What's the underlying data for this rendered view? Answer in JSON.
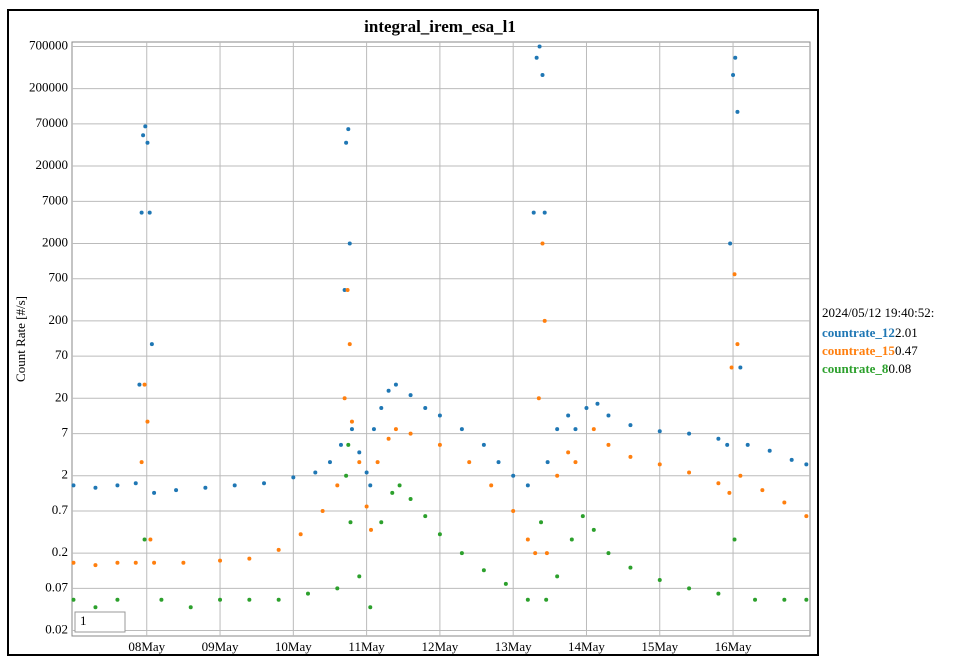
{
  "chart_data": {
    "type": "scatter",
    "title": "integral_irem_esa_l1",
    "y_label": "Count Rate [#/s]",
    "log_y": true,
    "grid": true,
    "zoom_input": "1",
    "xlim": [
      6.98,
      17.05
    ],
    "xticks": [
      {
        "value": 8,
        "label": "08May"
      },
      {
        "value": 9,
        "label": "09May"
      },
      {
        "value": 10,
        "label": "10May"
      },
      {
        "value": 11,
        "label": "11May"
      },
      {
        "value": 12,
        "label": "12May"
      },
      {
        "value": 13,
        "label": "13May"
      },
      {
        "value": 14,
        "label": "14May"
      },
      {
        "value": 15,
        "label": "15May"
      },
      {
        "value": 16,
        "label": "16May"
      }
    ],
    "ylim": [
      0.017,
      800000
    ],
    "yticks": [
      0.02,
      0.07,
      0.2,
      0.7,
      2,
      7,
      20,
      70,
      200,
      700,
      2000,
      7000,
      20000,
      70000,
      200000,
      700000
    ],
    "readout_time": "2024/05/12 19:40:52:",
    "series": [
      {
        "name": "countrate_12",
        "color": "#1f77b4",
        "readout": 2.01,
        "x": [
          7.0,
          7.3,
          7.6,
          7.85,
          7.9,
          7.93,
          7.95,
          7.98,
          8.01,
          8.04,
          8.07,
          8.1,
          8.4,
          8.8,
          9.2,
          9.6,
          10.0,
          10.3,
          10.5,
          10.65,
          10.7,
          10.72,
          10.75,
          10.77,
          10.8,
          10.9,
          11.0,
          11.05,
          11.1,
          11.2,
          11.3,
          11.4,
          11.6,
          11.8,
          12.0,
          12.3,
          12.6,
          12.8,
          13.0,
          13.2,
          13.28,
          13.32,
          13.36,
          13.4,
          13.43,
          13.47,
          13.6,
          13.75,
          13.85,
          14.0,
          14.15,
          14.3,
          14.6,
          15.0,
          15.4,
          15.8,
          15.92,
          15.96,
          16.0,
          16.03,
          16.06,
          16.1,
          16.2,
          16.5,
          16.8,
          17.0
        ],
        "values": [
          1.5,
          1.4,
          1.5,
          1.6,
          30,
          5000,
          50000,
          65000,
          40000,
          5000,
          100,
          1.2,
          1.3,
          1.4,
          1.5,
          1.6,
          1.9,
          2.2,
          3,
          5,
          500,
          40000,
          60000,
          2000,
          8,
          4,
          2.2,
          1.5,
          8,
          15,
          25,
          30,
          22,
          15,
          12,
          8,
          5,
          3,
          2,
          1.5,
          5000,
          500000,
          700000,
          300000,
          5000,
          3,
          8,
          12,
          8,
          15,
          17,
          12,
          9,
          7.5,
          7,
          6,
          5,
          2000,
          300000,
          500000,
          100000,
          50,
          5,
          4.2,
          3.2,
          2.8
        ]
      },
      {
        "name": "countrate_15",
        "color": "#ff7f0e",
        "readout": 0.47,
        "x": [
          7.0,
          7.3,
          7.6,
          7.85,
          7.93,
          7.97,
          8.01,
          8.05,
          8.1,
          8.5,
          9.0,
          9.4,
          9.8,
          10.1,
          10.4,
          10.6,
          10.7,
          10.74,
          10.77,
          10.8,
          10.9,
          11.0,
          11.06,
          11.15,
          11.3,
          11.4,
          11.6,
          12.0,
          12.4,
          12.7,
          13.0,
          13.2,
          13.3,
          13.35,
          13.4,
          13.43,
          13.46,
          13.6,
          13.75,
          13.85,
          14.1,
          14.3,
          14.6,
          15.0,
          15.4,
          15.8,
          15.95,
          15.98,
          16.02,
          16.06,
          16.1,
          16.4,
          16.7,
          17.0
        ],
        "values": [
          0.15,
          0.14,
          0.15,
          0.15,
          3,
          30,
          10,
          0.3,
          0.15,
          0.15,
          0.16,
          0.17,
          0.22,
          0.35,
          0.7,
          1.5,
          20,
          500,
          100,
          10,
          3,
          0.8,
          0.4,
          3,
          6,
          8,
          7,
          5,
          3,
          1.5,
          0.7,
          0.3,
          0.2,
          20,
          2000,
          200,
          0.2,
          2,
          4,
          3,
          8,
          5,
          3.5,
          2.8,
          2.2,
          1.6,
          1.2,
          50,
          800,
          100,
          2,
          1.3,
          0.9,
          0.6
        ]
      },
      {
        "name": "countrate_8",
        "color": "#2ca02c",
        "readout": 0.08,
        "x": [
          7.0,
          7.3,
          7.6,
          7.97,
          8.2,
          8.6,
          9.0,
          9.4,
          9.8,
          10.2,
          10.6,
          10.72,
          10.75,
          10.78,
          10.9,
          11.05,
          11.2,
          11.35,
          11.45,
          11.6,
          11.8,
          12.0,
          12.3,
          12.6,
          12.9,
          13.2,
          13.38,
          13.45,
          13.6,
          13.8,
          13.95,
          14.1,
          14.3,
          14.6,
          15.0,
          15.4,
          15.8,
          16.02,
          16.3,
          16.7,
          17.0
        ],
        "values": [
          0.05,
          0.04,
          0.05,
          0.3,
          0.05,
          0.04,
          0.05,
          0.05,
          0.05,
          0.06,
          0.07,
          2,
          5,
          0.5,
          0.1,
          0.04,
          0.5,
          1.2,
          1.5,
          1,
          0.6,
          0.35,
          0.2,
          0.12,
          0.08,
          0.05,
          0.5,
          0.05,
          0.1,
          0.3,
          0.6,
          0.4,
          0.2,
          0.13,
          0.09,
          0.07,
          0.06,
          0.3,
          0.05,
          0.05,
          0.05
        ]
      }
    ]
  }
}
